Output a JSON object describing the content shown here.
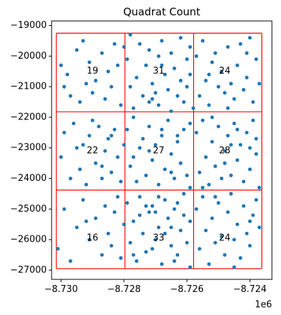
{
  "chart_data": {
    "type": "scatter",
    "title": "Quadrat Count",
    "xlabel": "",
    "ylabel": "",
    "x_offset_label": "1e6",
    "xlim": [
      -8.7303,
      -8.7233
    ],
    "ylim": [
      -27300,
      -18850
    ],
    "xticks": [
      -8.73,
      -8.728,
      -8.726,
      -8.724
    ],
    "xtick_labels": [
      "−8.730",
      "−8.728",
      "−8.726",
      "−8.724"
    ],
    "yticks": [
      -19000,
      -20000,
      -21000,
      -22000,
      -23000,
      -24000,
      -25000,
      -26000,
      -27000
    ],
    "ytick_labels": [
      "−19000",
      "−20000",
      "−21000",
      "−22000",
      "−23000",
      "−24000",
      "−25000",
      "−26000",
      "−27000"
    ],
    "grid": false,
    "point_color": "#1f77b4",
    "grid_color": "#ff0000",
    "quadrat_bounds": {
      "x_edges": [
        -8.73015,
        -8.72797,
        -8.72579,
        -8.72362
      ],
      "y_edges": [
        -19250,
        -21820,
        -24380,
        -26950
      ]
    },
    "counts": [
      {
        "label": "19",
        "x": -8.729,
        "y": -20500
      },
      {
        "label": "31",
        "x": -8.7269,
        "y": -20500
      },
      {
        "label": "24",
        "x": -8.7248,
        "y": -20500
      },
      {
        "label": "22",
        "x": -8.729,
        "y": -23100
      },
      {
        "label": "27",
        "x": -8.7269,
        "y": -23100
      },
      {
        "label": "28",
        "x": -8.7248,
        "y": -23100
      },
      {
        "label": "16",
        "x": -8.729,
        "y": -25950
      },
      {
        "label": "33",
        "x": -8.7269,
        "y": -25950
      },
      {
        "label": "24",
        "x": -8.7248,
        "y": -25950
      }
    ],
    "points": [
      [
        -8.73,
        -20300
      ],
      [
        -8.7298,
        -20600
      ],
      [
        -8.7299,
        -21000
      ],
      [
        -8.7297,
        -21300
      ],
      [
        -8.7295,
        -19800
      ],
      [
        -8.7294,
        -21500
      ],
      [
        -8.7293,
        -19500
      ],
      [
        -8.7291,
        -20200
      ],
      [
        -8.729,
        -21200
      ],
      [
        -8.7289,
        -20800
      ],
      [
        -8.7287,
        -19900
      ],
      [
        -8.7286,
        -21400
      ],
      [
        -8.7285,
        -20500
      ],
      [
        -8.7284,
        -21000
      ],
      [
        -8.7283,
        -19600
      ],
      [
        -8.7282,
        -20300
      ],
      [
        -8.7281,
        -21600
      ],
      [
        -8.728,
        -19700
      ],
      [
        -8.7292,
        -20900
      ],
      [
        -8.7279,
        -20100
      ],
      [
        -8.7278,
        -21000
      ],
      [
        -8.7278,
        -19300
      ],
      [
        -8.7277,
        -21700
      ],
      [
        -8.7276,
        -20700
      ],
      [
        -8.7275,
        -19600
      ],
      [
        -8.7274,
        -21300
      ],
      [
        -8.7273,
        -20300
      ],
      [
        -8.7272,
        -21500
      ],
      [
        -8.7272,
        -19800
      ],
      [
        -8.7271,
        -20900
      ],
      [
        -8.727,
        -21200
      ],
      [
        -8.7269,
        -20000
      ],
      [
        -8.7269,
        -21600
      ],
      [
        -8.7268,
        -19500
      ],
      [
        -8.7267,
        -20600
      ],
      [
        -8.7266,
        -21100
      ],
      [
        -8.7265,
        -21800
      ],
      [
        -8.7265,
        -19900
      ],
      [
        -8.7264,
        -20400
      ],
      [
        -8.7263,
        -21300
      ],
      [
        -8.7262,
        -19400
      ],
      [
        -8.7262,
        -20800
      ],
      [
        -8.7261,
        -21500
      ],
      [
        -8.726,
        -20100
      ],
      [
        -8.726,
        -21000
      ],
      [
        -8.7259,
        -19700
      ],
      [
        -8.7259,
        -20600
      ],
      [
        -8.7258,
        -21700
      ],
      [
        -8.7271,
        -21400
      ],
      [
        -8.7268,
        -20300
      ],
      [
        -8.7257,
        -20000
      ],
      [
        -8.7256,
        -21300
      ],
      [
        -8.7255,
        -19500
      ],
      [
        -8.7254,
        -20800
      ],
      [
        -8.7253,
        -21600
      ],
      [
        -8.7252,
        -20200
      ],
      [
        -8.7251,
        -19900
      ],
      [
        -8.725,
        -21000
      ],
      [
        -8.7249,
        -20500
      ],
      [
        -8.7248,
        -21200
      ],
      [
        -8.7247,
        -19700
      ],
      [
        -8.7246,
        -20900
      ],
      [
        -8.7245,
        -21400
      ],
      [
        -8.7244,
        -20300
      ],
      [
        -8.7243,
        -19600
      ],
      [
        -8.7242,
        -21100
      ],
      [
        -8.7241,
        -20700
      ],
      [
        -8.724,
        -19400
      ],
      [
        -8.7239,
        -21500
      ],
      [
        -8.7238,
        -20100
      ],
      [
        -8.7237,
        -20900
      ],
      [
        -8.7253,
        -20600
      ],
      [
        -8.7247,
        -21700
      ],
      [
        -8.7241,
        -19900
      ],
      [
        -8.73,
        -23300
      ],
      [
        -8.7299,
        -22500
      ],
      [
        -8.7297,
        -24000
      ],
      [
        -8.7296,
        -22200
      ],
      [
        -8.7294,
        -23700
      ],
      [
        -8.7293,
        -22900
      ],
      [
        -8.7292,
        -24200
      ],
      [
        -8.7291,
        -22600
      ],
      [
        -8.7289,
        -23500
      ],
      [
        -8.7288,
        -22300
      ],
      [
        -8.7287,
        -24000
      ],
      [
        -8.7286,
        -23100
      ],
      [
        -8.7285,
        -22700
      ],
      [
        -8.7284,
        -23800
      ],
      [
        -8.7283,
        -22400
      ],
      [
        -8.7282,
        -23300
      ],
      [
        -8.7281,
        -24100
      ],
      [
        -8.728,
        -22900
      ],
      [
        -8.7295,
        -23000
      ],
      [
        -8.729,
        -22100
      ],
      [
        -8.7284,
        -22600
      ],
      [
        -8.7287,
        -23600
      ],
      [
        -8.7279,
        -22400
      ],
      [
        -8.7278,
        -23600
      ],
      [
        -8.7277,
        -22000
      ],
      [
        -8.7276,
        -24100
      ],
      [
        -8.7275,
        -23000
      ],
      [
        -8.7274,
        -22700
      ],
      [
        -8.7273,
        -23900
      ],
      [
        -8.7272,
        -22300
      ],
      [
        -8.7271,
        -23400
      ],
      [
        -8.727,
        -22900
      ],
      [
        -8.7269,
        -24200
      ],
      [
        -8.7268,
        -22600
      ],
      [
        -8.7267,
        -23700
      ],
      [
        -8.7266,
        -22100
      ],
      [
        -8.7265,
        -23200
      ],
      [
        -8.7264,
        -24000
      ],
      [
        -8.7263,
        -22800
      ],
      [
        -8.7262,
        -23500
      ],
      [
        -8.7261,
        -22400
      ],
      [
        -8.726,
        -23900
      ],
      [
        -8.7259,
        -22200
      ],
      [
        -8.7259,
        -24300
      ],
      [
        -8.7272,
        -23100
      ],
      [
        -8.7268,
        -22400
      ],
      [
        -8.7265,
        -23800
      ],
      [
        -8.7277,
        -23300
      ],
      [
        -8.7263,
        -22600
      ],
      [
        -8.7257,
        -22500
      ],
      [
        -8.7256,
        -23800
      ],
      [
        -8.7255,
        -22100
      ],
      [
        -8.7254,
        -23300
      ],
      [
        -8.7253,
        -24200
      ],
      [
        -8.7252,
        -22800
      ],
      [
        -8.7251,
        -23600
      ],
      [
        -8.725,
        -22300
      ],
      [
        -8.7249,
        -24000
      ],
      [
        -8.7248,
        -23100
      ],
      [
        -8.7247,
        -22600
      ],
      [
        -8.7246,
        -23900
      ],
      [
        -8.7245,
        -22200
      ],
      [
        -8.7244,
        -23400
      ],
      [
        -8.7243,
        -22900
      ],
      [
        -8.7242,
        -24100
      ],
      [
        -8.7241,
        -22500
      ],
      [
        -8.724,
        -23700
      ],
      [
        -8.7239,
        -22100
      ],
      [
        -8.7238,
        -23200
      ],
      [
        -8.7237,
        -24300
      ],
      [
        -8.7252,
        -22000
      ],
      [
        -8.7248,
        -23500
      ],
      [
        -8.7244,
        -22400
      ],
      [
        -8.724,
        -23000
      ],
      [
        -8.7255,
        -24300
      ],
      [
        -8.7246,
        -22900
      ],
      [
        -8.7238,
        -22700
      ],
      [
        -8.7301,
        -26300
      ],
      [
        -8.7299,
        -25000
      ],
      [
        -8.7297,
        -26700
      ],
      [
        -8.7295,
        -25600
      ],
      [
        -8.7293,
        -24700
      ],
      [
        -8.7291,
        -26000
      ],
      [
        -8.7289,
        -25300
      ],
      [
        -8.7287,
        -26500
      ],
      [
        -8.7286,
        -24900
      ],
      [
        -8.7285,
        -25800
      ],
      [
        -8.7284,
        -26200
      ],
      [
        -8.7283,
        -25100
      ],
      [
        -8.7282,
        -24600
      ],
      [
        -8.7281,
        -26600
      ],
      [
        -8.728,
        -25500
      ],
      [
        -8.7292,
        -25400
      ],
      [
        -8.7279,
        -24800
      ],
      [
        -8.7278,
        -26100
      ],
      [
        -8.7277,
        -25400
      ],
      [
        -8.7276,
        -26700
      ],
      [
        -8.7275,
        -24600
      ],
      [
        -8.7274,
        -25800
      ],
      [
        -8.7273,
        -26400
      ],
      [
        -8.7272,
        -25100
      ],
      [
        -8.7271,
        -24900
      ],
      [
        -8.727,
        -26000
      ],
      [
        -8.7269,
        -25600
      ],
      [
        -8.7268,
        -26800
      ],
      [
        -8.7267,
        -24700
      ],
      [
        -8.7266,
        -25300
      ],
      [
        -8.7265,
        -26200
      ],
      [
        -8.7264,
        -25000
      ],
      [
        -8.7263,
        -26500
      ],
      [
        -8.7262,
        -25700
      ],
      [
        -8.7261,
        -24500
      ],
      [
        -8.726,
        -26100
      ],
      [
        -8.7259,
        -25400
      ],
      [
        -8.7259,
        -26900
      ],
      [
        -8.7275,
        -25200
      ],
      [
        -8.7271,
        -26300
      ],
      [
        -8.7267,
        -25800
      ],
      [
        -8.7263,
        -24800
      ],
      [
        -8.7277,
        -26500
      ],
      [
        -8.7265,
        -25600
      ],
      [
        -8.7269,
        -24600
      ],
      [
        -8.7261,
        -25200
      ],
      [
        -8.7273,
        -24900
      ],
      [
        -8.7264,
        -26700
      ],
      [
        -8.727,
        -25100
      ],
      [
        -8.7257,
        -25000
      ],
      [
        -8.7256,
        -26300
      ],
      [
        -8.7255,
        -24600
      ],
      [
        -8.7254,
        -25700
      ],
      [
        -8.7253,
        -26800
      ],
      [
        -8.7252,
        -25300
      ],
      [
        -8.7251,
        -26100
      ],
      [
        -8.725,
        -24800
      ],
      [
        -8.7249,
        -25900
      ],
      [
        -8.7248,
        -26500
      ],
      [
        -8.7247,
        -25100
      ],
      [
        -8.7246,
        -24500
      ],
      [
        -8.7245,
        -26000
      ],
      [
        -8.7244,
        -25500
      ],
      [
        -8.7243,
        -26600
      ],
      [
        -8.7242,
        -24900
      ],
      [
        -8.7241,
        -25800
      ],
      [
        -8.724,
        -26200
      ],
      [
        -8.7239,
        -25200
      ],
      [
        -8.7238,
        -24700
      ],
      [
        -8.7237,
        -25600
      ],
      [
        -8.7251,
        -24600
      ],
      [
        -8.7245,
        -26900
      ],
      [
        -8.724,
        -25400
      ]
    ]
  }
}
